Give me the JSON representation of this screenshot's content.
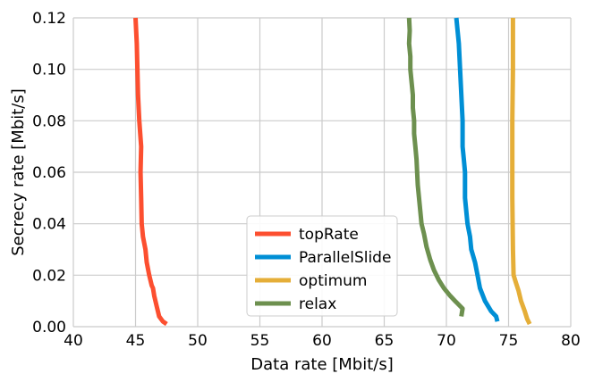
{
  "chart_data": {
    "type": "line",
    "title": "",
    "xlabel": "Data rate [Mbit/s]",
    "ylabel": "Secrecy rate [Mbit/s]",
    "xlim": [
      40,
      80
    ],
    "ylim": [
      0,
      0.12
    ],
    "xticks": [
      40,
      45,
      50,
      55,
      60,
      65,
      70,
      75,
      80
    ],
    "xtick_labels": [
      "40",
      "45",
      "50",
      "55",
      "60",
      "65",
      "70",
      "75",
      "80"
    ],
    "yticks": [
      0,
      0.02,
      0.04,
      0.06,
      0.08,
      0.1,
      0.12
    ],
    "ytick_labels": [
      "0.00",
      "0.02",
      "0.04",
      "0.06",
      "0.08",
      "0.10",
      "0.12"
    ],
    "grid": true,
    "legend_position": "lower-center",
    "series": [
      {
        "name": "topRate",
        "color": "#fc4f30",
        "points": [
          [
            47.5,
            0.001
          ],
          [
            47.2,
            0.002
          ],
          [
            46.9,
            0.004
          ],
          [
            46.7,
            0.008
          ],
          [
            46.5,
            0.012
          ],
          [
            46.4,
            0.015
          ],
          [
            46.3,
            0.016
          ],
          [
            46.1,
            0.02
          ],
          [
            45.9,
            0.025
          ],
          [
            45.8,
            0.03
          ],
          [
            45.6,
            0.035
          ],
          [
            45.5,
            0.04
          ],
          [
            45.45,
            0.05
          ],
          [
            45.4,
            0.06
          ],
          [
            45.45,
            0.07
          ],
          [
            45.3,
            0.08
          ],
          [
            45.2,
            0.09
          ],
          [
            45.15,
            0.1
          ],
          [
            45.1,
            0.11
          ],
          [
            45.0,
            0.12
          ]
        ]
      },
      {
        "name": "ParallelSlide",
        "color": "#008fd5",
        "points": [
          [
            74.1,
            0.002
          ],
          [
            74.0,
            0.004
          ],
          [
            73.6,
            0.006
          ],
          [
            73.1,
            0.01
          ],
          [
            72.7,
            0.015
          ],
          [
            72.5,
            0.02
          ],
          [
            72.3,
            0.025
          ],
          [
            72.0,
            0.03
          ],
          [
            71.9,
            0.035
          ],
          [
            71.7,
            0.04
          ],
          [
            71.6,
            0.045
          ],
          [
            71.5,
            0.05
          ],
          [
            71.5,
            0.06
          ],
          [
            71.4,
            0.065
          ],
          [
            71.3,
            0.07
          ],
          [
            71.3,
            0.08
          ],
          [
            71.2,
            0.09
          ],
          [
            71.1,
            0.1
          ],
          [
            71.0,
            0.11
          ],
          [
            70.8,
            0.12
          ]
        ]
      },
      {
        "name": "optimum",
        "color": "#e5ae38",
        "points": [
          [
            76.7,
            0.001
          ],
          [
            76.6,
            0.002
          ],
          [
            76.5,
            0.003
          ],
          [
            76.3,
            0.006
          ],
          [
            76.0,
            0.01
          ],
          [
            75.8,
            0.014
          ],
          [
            75.6,
            0.017
          ],
          [
            75.4,
            0.02
          ],
          [
            75.35,
            0.03
          ],
          [
            75.3,
            0.05
          ],
          [
            75.3,
            0.08
          ],
          [
            75.35,
            0.1
          ],
          [
            75.35,
            0.12
          ]
        ]
      },
      {
        "name": "relax",
        "color": "#6d904f",
        "points": [
          [
            71.2,
            0.004
          ],
          [
            71.3,
            0.007
          ],
          [
            70.7,
            0.01
          ],
          [
            70.3,
            0.012
          ],
          [
            69.8,
            0.015
          ],
          [
            69.4,
            0.018
          ],
          [
            69.0,
            0.022
          ],
          [
            68.7,
            0.026
          ],
          [
            68.4,
            0.031
          ],
          [
            68.2,
            0.036
          ],
          [
            68.0,
            0.04
          ],
          [
            67.9,
            0.045
          ],
          [
            67.8,
            0.05
          ],
          [
            67.7,
            0.055
          ],
          [
            67.65,
            0.06
          ],
          [
            67.6,
            0.065
          ],
          [
            67.5,
            0.07
          ],
          [
            67.4,
            0.075
          ],
          [
            67.4,
            0.08
          ],
          [
            67.3,
            0.085
          ],
          [
            67.3,
            0.09
          ],
          [
            67.2,
            0.095
          ],
          [
            67.1,
            0.1
          ],
          [
            67.1,
            0.105
          ],
          [
            67.0,
            0.11
          ],
          [
            67.05,
            0.115
          ],
          [
            67.0,
            0.12
          ]
        ]
      }
    ]
  }
}
